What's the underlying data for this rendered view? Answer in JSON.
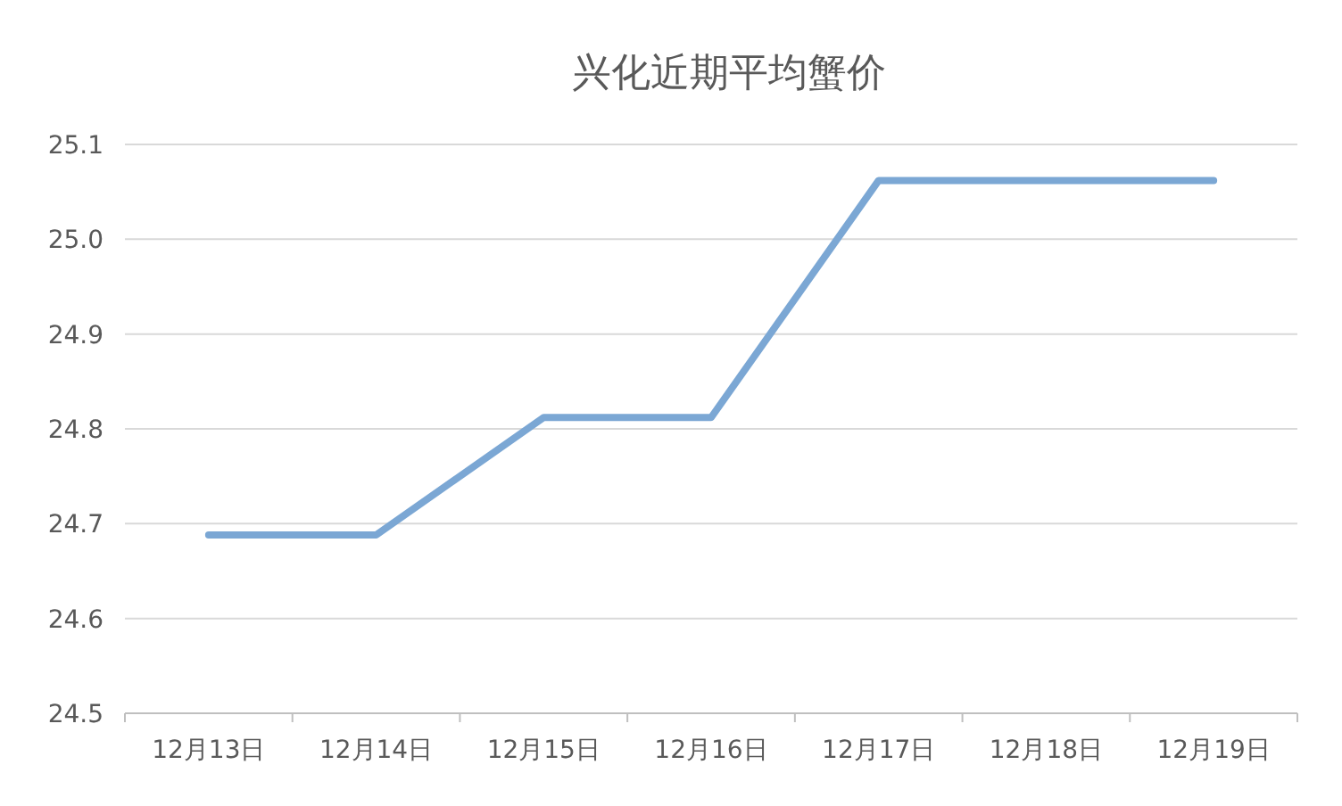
{
  "chart_data": {
    "type": "line",
    "title": "兴化近期平均蟹价",
    "categories": [
      "12月13日",
      "12月14日",
      "12月15日",
      "12月16日",
      "12月17日",
      "12月18日",
      "12月19日"
    ],
    "series": [
      {
        "color": "#7ba7d4",
        "values": [
          24.688,
          24.688,
          24.812,
          24.812,
          25.062,
          25.062,
          25.062
        ]
      }
    ],
    "ylim": [
      24.5,
      25.1
    ],
    "yticks": [
      {
        "value": 24.5,
        "label": "24.5"
      },
      {
        "value": 24.6,
        "label": "24.6"
      },
      {
        "value": 24.7,
        "label": "24.7"
      },
      {
        "value": 24.8,
        "label": "24.8"
      },
      {
        "value": 24.9,
        "label": "24.9"
      },
      {
        "value": 25.0,
        "label": "25.0"
      },
      {
        "value": 25.1,
        "label": "25.1"
      }
    ],
    "grid": "y",
    "marker": "none",
    "line_style": "solid"
  }
}
